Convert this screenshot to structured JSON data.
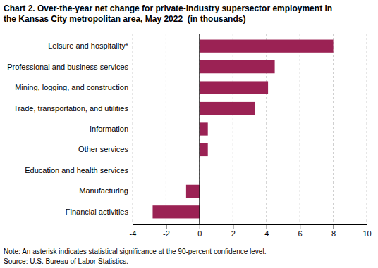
{
  "chart_data": {
    "type": "bar",
    "orientation": "horizontal",
    "title": "Chart 2. Over-the-year net change for private-industry supersector employment in",
    "subtitle": "the Kansas City metropolitan area, May 2022  (in thousands)",
    "categories": [
      "Financial activities",
      "Manufacturing",
      "Education and health services",
      "Other services",
      "Information",
      "Trade, transportation, and utilities",
      "Mining, logging, and construction",
      "Professional and business services",
      "Leisure and hospitality*"
    ],
    "values": [
      -2.8,
      -0.8,
      0.0,
      0.5,
      0.5,
      3.3,
      4.1,
      4.5,
      8.0
    ],
    "color": "#9b2254",
    "xlim": [
      -4,
      10
    ],
    "xticks": [
      -4,
      -2,
      0,
      2,
      4,
      6,
      8,
      10
    ],
    "grid": true,
    "annotations": [
      "Note: An asterisk indicates statistical significance at the 90-percent confidence level.",
      "Source: U.S. Bureau of Labor Statistics."
    ]
  }
}
